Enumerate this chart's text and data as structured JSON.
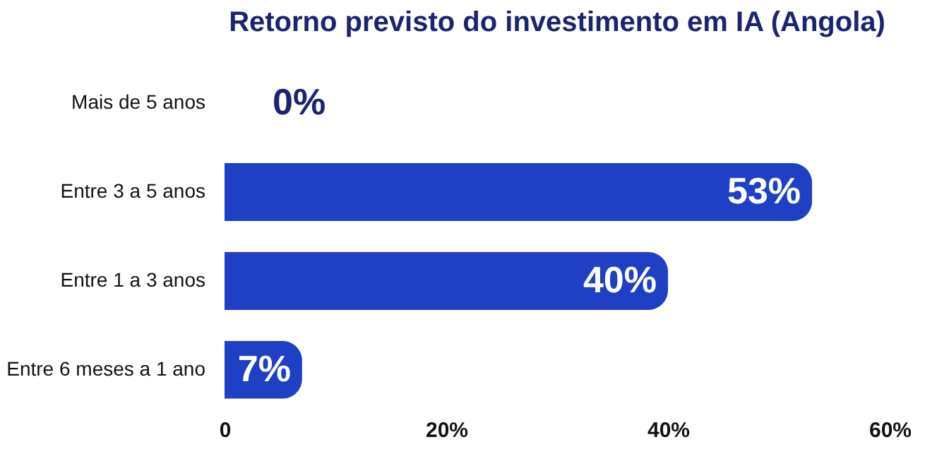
{
  "chart_data": {
    "type": "bar",
    "orientation": "horizontal",
    "title": "Retorno previsto do investimento em IA (Angola)",
    "categories": [
      "Mais de 5 anos",
      "Entre 3 a 5 anos",
      "Entre 1 a 3 anos",
      "Entre 6 meses a 1 ano"
    ],
    "values": [
      0,
      53,
      40,
      7
    ],
    "value_labels": [
      "0%",
      "53%",
      "40%",
      "7%"
    ],
    "color": "#1f3fc4",
    "xlim": [
      0,
      60
    ],
    "xticks": [
      0,
      {
        "value": 20,
        "label": "20%"
      },
      {
        "value": 40,
        "label": "40%"
      },
      {
        "value": 60,
        "label": "60%"
      }
    ],
    "grid": false
  }
}
